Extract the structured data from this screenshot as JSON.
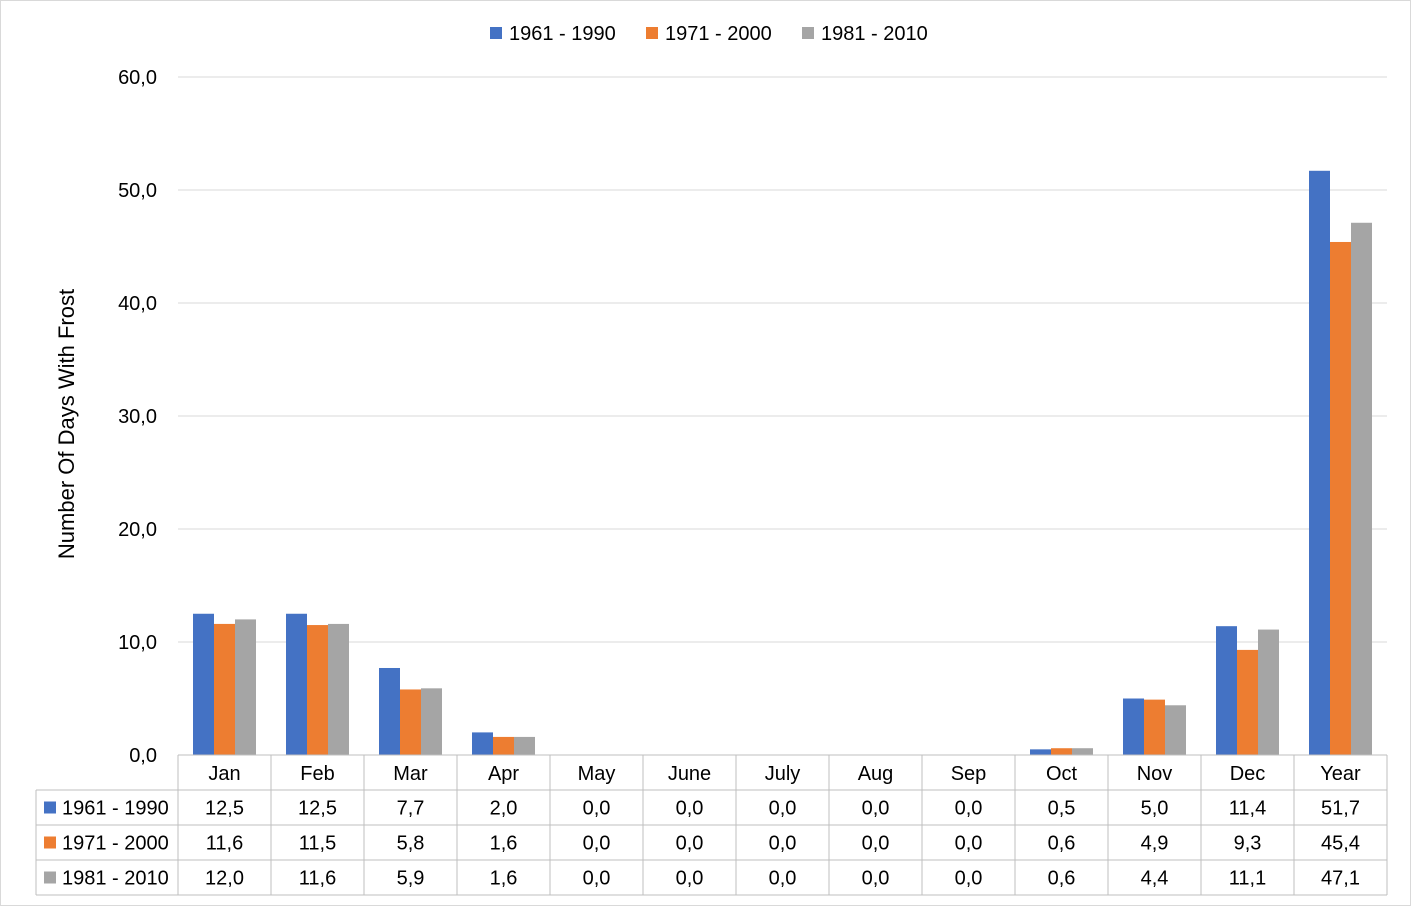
{
  "chart_data": {
    "type": "bar",
    "title": "",
    "xlabel": "",
    "ylabel": "Number Of Days With Frost",
    "ylim": [
      0,
      60
    ],
    "yticks": [
      "0,0",
      "10,0",
      "20,0",
      "30,0",
      "40,0",
      "50,0",
      "60,0"
    ],
    "grid": true,
    "legend_position": "top-center",
    "data_table": true,
    "categories": [
      "Jan",
      "Feb",
      "Mar",
      "Apr",
      "May",
      "June",
      "July",
      "Aug",
      "Sep",
      "Oct",
      "Nov",
      "Dec",
      "Year"
    ],
    "series": [
      {
        "name": "1961 - 1990",
        "color": "#4472C4",
        "values": [
          12.5,
          12.5,
          7.7,
          2.0,
          0.0,
          0.0,
          0.0,
          0.0,
          0.0,
          0.5,
          5.0,
          11.4,
          51.7
        ],
        "labels": [
          "12,5",
          "12,5",
          "7,7",
          "2,0",
          "0,0",
          "0,0",
          "0,0",
          "0,0",
          "0,0",
          "0,5",
          "5,0",
          "11,4",
          "51,7"
        ]
      },
      {
        "name": "1971 - 2000",
        "color": "#ED7D31",
        "values": [
          11.6,
          11.5,
          5.8,
          1.6,
          0.0,
          0.0,
          0.0,
          0.0,
          0.0,
          0.6,
          4.9,
          9.3,
          45.4
        ],
        "labels": [
          "11,6",
          "11,5",
          "5,8",
          "1,6",
          "0,0",
          "0,0",
          "0,0",
          "0,0",
          "0,0",
          "0,6",
          "4,9",
          "9,3",
          "45,4"
        ]
      },
      {
        "name": "1981 - 2010",
        "color": "#A5A5A5",
        "values": [
          12.0,
          11.6,
          5.9,
          1.6,
          0.0,
          0.0,
          0.0,
          0.0,
          0.0,
          0.6,
          4.4,
          11.1,
          47.1
        ],
        "labels": [
          "12,0",
          "11,6",
          "5,9",
          "1,6",
          "0,0",
          "0,0",
          "0,0",
          "0,0",
          "0,0",
          "0,6",
          "4,4",
          "11,1",
          "47,1"
        ]
      }
    ],
    "colors": {
      "gridline": "#D9D9D9",
      "table_border": "#BFBFBF"
    }
  }
}
